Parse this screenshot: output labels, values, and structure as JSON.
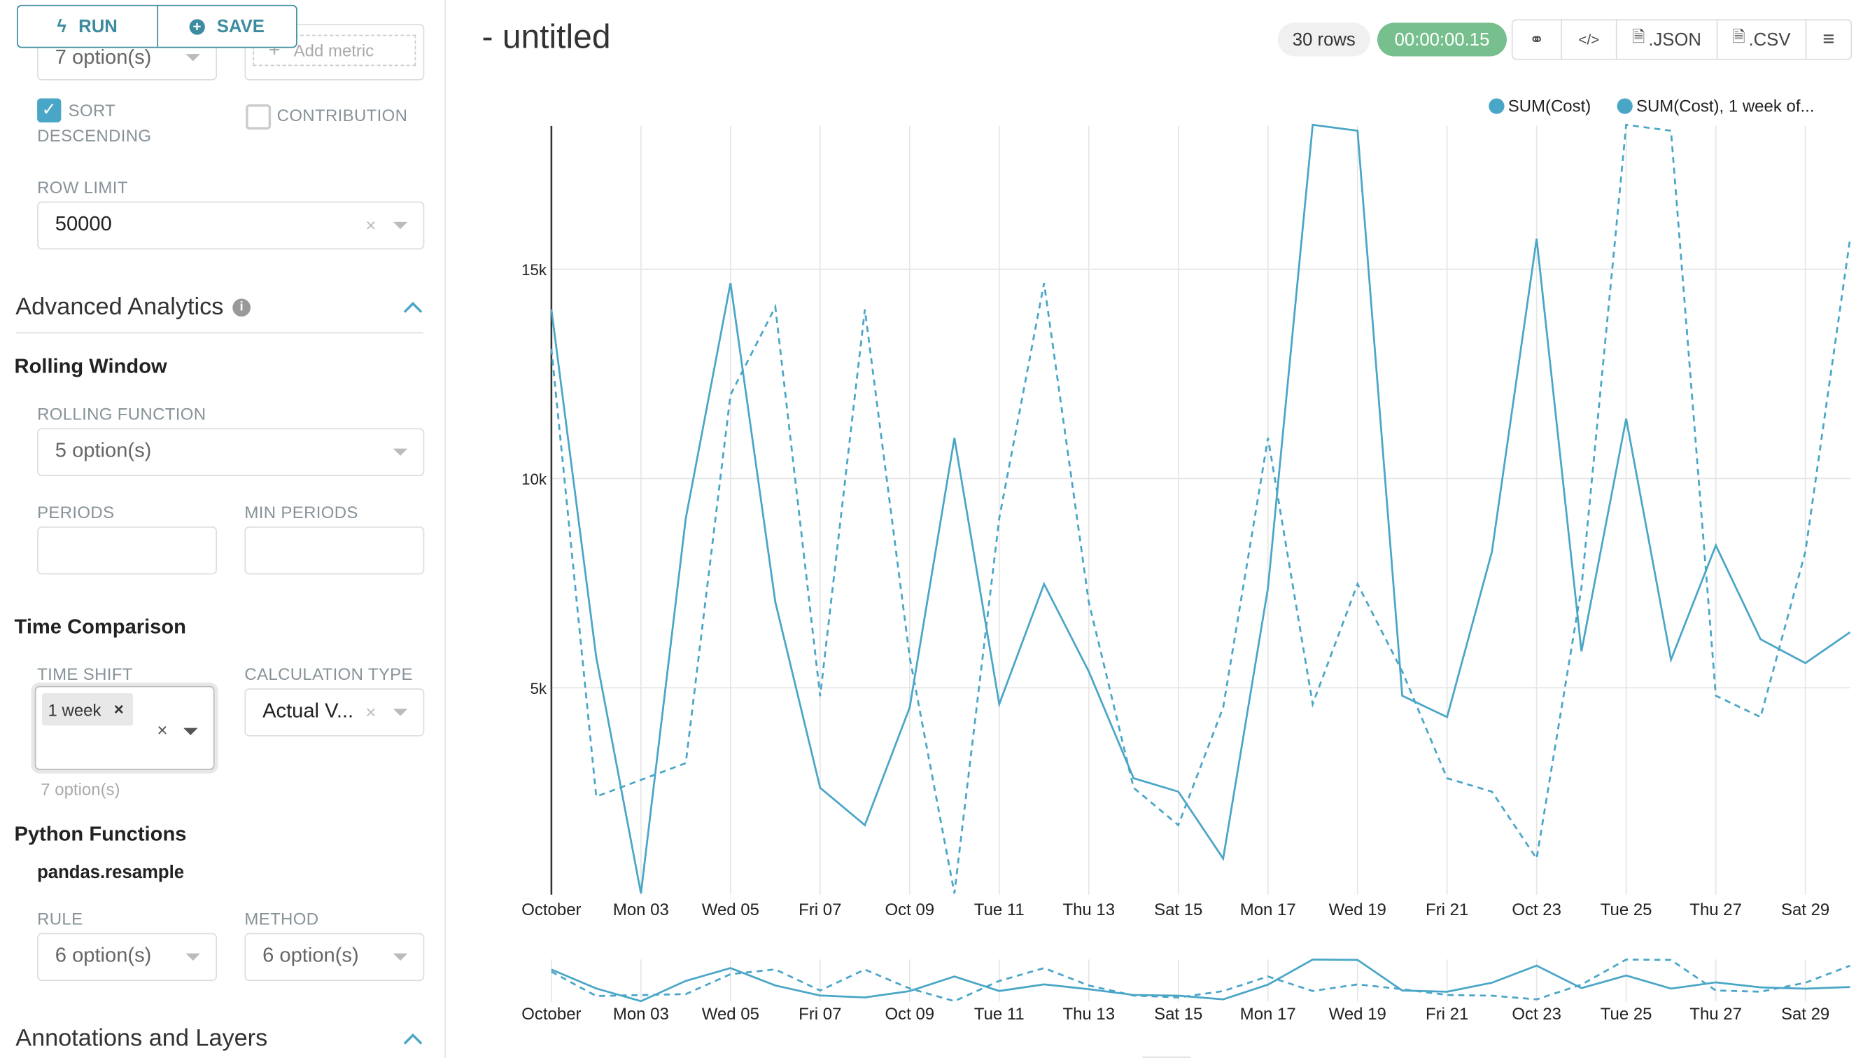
{
  "toolbar": {
    "run_label": "RUN",
    "save_label": "SAVE",
    "run_icon": "bolt-icon",
    "save_icon": "plus-circle-icon"
  },
  "query": {
    "group_by_placeholder": "7 option(s)",
    "add_metric": "Add metric",
    "sort_descending": {
      "label_line1": "SORT",
      "label_line2": "DESCENDING",
      "checked": true
    },
    "contribution": {
      "label": "CONTRIBUTION",
      "checked": false
    },
    "row_limit": {
      "label": "ROW LIMIT",
      "value": "50000"
    }
  },
  "advanced_analytics": {
    "title": "Advanced Analytics",
    "rolling_window": {
      "title": "Rolling Window",
      "function_label": "ROLLING FUNCTION",
      "function_placeholder": "5 option(s)",
      "periods_label": "PERIODS",
      "periods_value": "",
      "min_periods_label": "MIN PERIODS",
      "min_periods_value": ""
    },
    "time_comparison": {
      "title": "Time Comparison",
      "time_shift_label": "TIME SHIFT",
      "time_shift_tag": "1 week",
      "time_shift_hint": "7 option(s)",
      "calc_type_label": "CALCULATION TYPE",
      "calc_type_value": "Actual V..."
    },
    "python_functions": {
      "title": "Python Functions",
      "subtitle": "pandas.resample",
      "rule_label": "RULE",
      "rule_placeholder": "6 option(s)",
      "method_label": "METHOD",
      "method_placeholder": "6 option(s)"
    }
  },
  "annotations": {
    "title": "Annotations and Layers"
  },
  "header": {
    "title": "- untitled",
    "rows": "30 rows",
    "timer": "00:00:00.15",
    "json_label": ".JSON",
    "csv_label": ".CSV"
  },
  "colors": {
    "accent": "#3d8ba0",
    "series": "#4aa6c7",
    "timer_bg": "#77c08e",
    "checkbox": "#4aa6c7"
  },
  "chart_data": {
    "type": "line",
    "legend": [
      "SUM(Cost)",
      "SUM(Cost), 1 week of..."
    ],
    "legend_position": "top-right",
    "grid": true,
    "x_tick_labels": [
      "October",
      "Mon 03",
      "Wed 05",
      "Fri 07",
      "Oct 09",
      "Tue 11",
      "Thu 13",
      "Sat 15",
      "Mon 17",
      "Wed 19",
      "Fri 21",
      "Oct 23",
      "Tue 25",
      "Thu 27",
      "Sat 29"
    ],
    "y_tick_labels": [
      "5k",
      "10k",
      "15k"
    ],
    "y_ticks": [
      5000,
      10000,
      15000
    ],
    "ylim": [
      0,
      18500
    ],
    "x": [
      "2022-10-01",
      "2022-10-02",
      "2022-10-03",
      "2022-10-04",
      "2022-10-05",
      "2022-10-06",
      "2022-10-07",
      "2022-10-08",
      "2022-10-09",
      "2022-10-10",
      "2022-10-11",
      "2022-10-12",
      "2022-10-13",
      "2022-10-14",
      "2022-10-15",
      "2022-10-16",
      "2022-10-17",
      "2022-10-18",
      "2022-10-19",
      "2022-10-20",
      "2022-10-21",
      "2022-10-22",
      "2022-10-23",
      "2022-10-24",
      "2022-10-25",
      "2022-10-26",
      "2022-10-27",
      "2022-10-28",
      "2022-10-29",
      "2022-10-30"
    ],
    "series": [
      {
        "name": "SUM(Cost)",
        "style": "solid",
        "values": [
          14040,
          5730,
          90,
          9050,
          14670,
          7050,
          2610,
          1720,
          4530,
          10970,
          4610,
          7480,
          5390,
          2840,
          2520,
          920,
          7390,
          18450,
          18310,
          4810,
          4300,
          8250,
          15730,
          5870,
          11430,
          5670,
          8400,
          6160,
          5590,
          6330
        ]
      },
      {
        "name": "SUM(Cost), 1 week of...",
        "style": "dashed",
        "values": [
          13100,
          2400,
          2800,
          3200,
          12000,
          14100,
          4800,
          14040,
          5730,
          90,
          9050,
          14670,
          7050,
          2610,
          1720,
          4530,
          10970,
          4610,
          7480,
          5390,
          2840,
          2520,
          920,
          7390,
          18450,
          18310,
          4810,
          4300,
          8250,
          15730
        ]
      }
    ]
  }
}
